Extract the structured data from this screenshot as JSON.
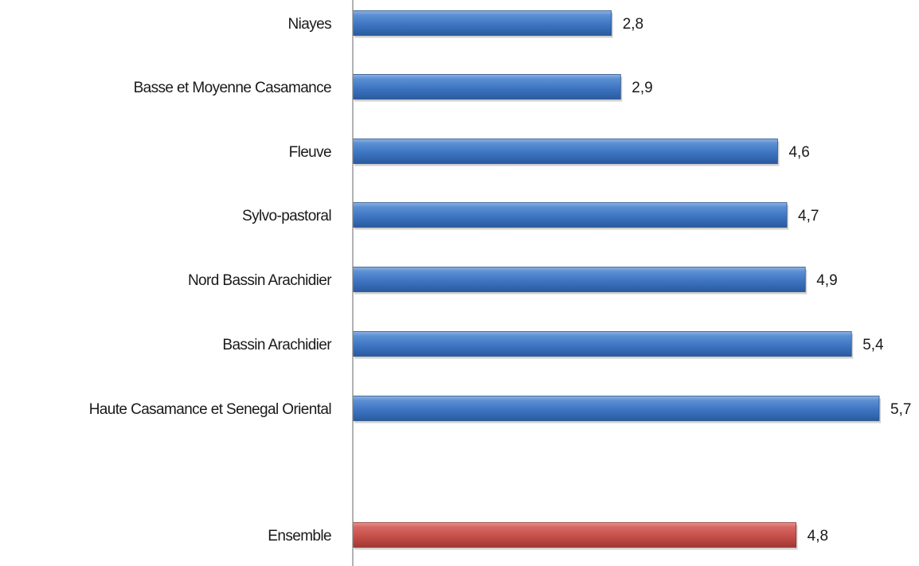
{
  "chart_data": {
    "type": "bar",
    "orientation": "horizontal",
    "categories": [
      "Niayes",
      "Basse et Moyenne Casamance",
      "Fleuve",
      "Sylvo-pastoral",
      "Nord Bassin Arachidier",
      "Bassin Arachidier",
      "Haute Casamance et Senegal Oriental",
      "Ensemble"
    ],
    "values": [
      2.8,
      2.9,
      4.6,
      4.7,
      4.9,
      5.4,
      5.7,
      4.8
    ],
    "value_labels": [
      "2,8",
      "2,9",
      "4,6",
      "4,7",
      "4,9",
      "5,4",
      "5,7",
      "4,8"
    ],
    "bar_colors": [
      "#3f75c0",
      "#3f75c0",
      "#3f75c0",
      "#3f75c0",
      "#3f75c0",
      "#3f75c0",
      "#3f75c0",
      "#c9504b"
    ],
    "title": "",
    "xlabel": "",
    "ylabel": "",
    "xlim": [
      0,
      5.7
    ],
    "grid": false,
    "legend": "none",
    "colors": {
      "series": "#3f75c0",
      "total": "#c9504b",
      "axis": "#808080"
    }
  }
}
